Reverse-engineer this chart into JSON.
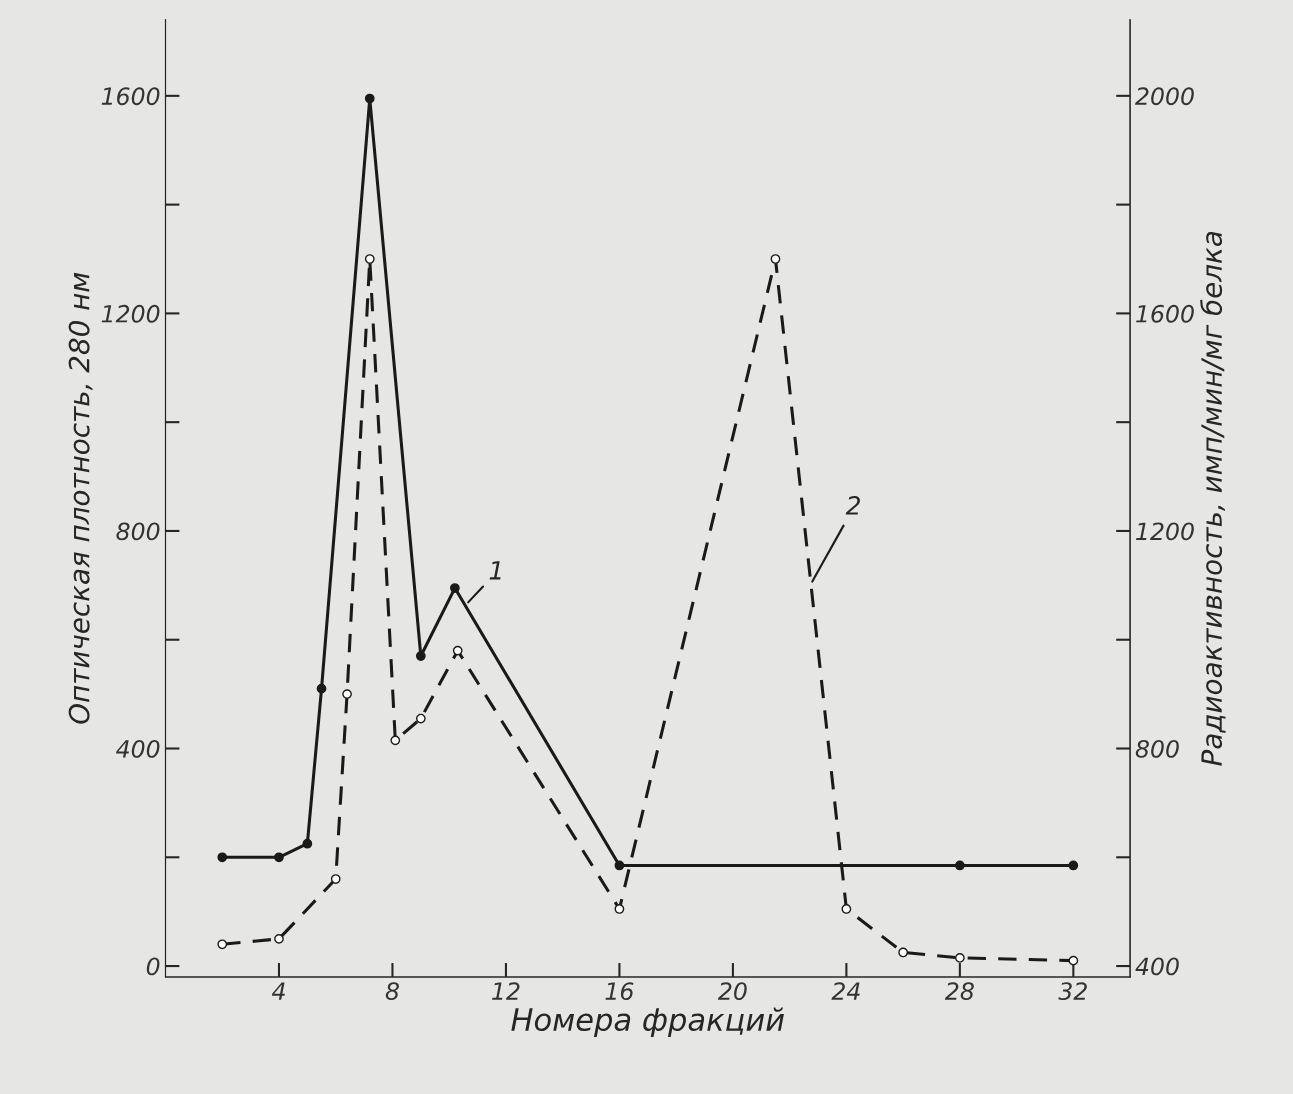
{
  "chart_data": {
    "type": "line",
    "xlabel": "Номера фракций",
    "ylabel": "Оптическая плотность, 280 нм",
    "y2label": "Радиоактивность, имп/мин/мг белка",
    "xlim": [
      0,
      34
    ],
    "xticks": [
      4,
      8,
      12,
      16,
      20,
      24,
      28,
      32
    ],
    "ylim": [
      -20,
      1740
    ],
    "yticks": [
      0,
      {
        "value": 200,
        "label": null
      },
      400,
      {
        "value": 600,
        "label": null
      },
      800,
      {
        "value": 1000,
        "label": null
      },
      1200,
      {
        "value": 1400,
        "label": null
      },
      1600
    ],
    "y2lim": [
      380,
      2140
    ],
    "y2ticks": [
      400,
      {
        "value": 600,
        "label": null
      },
      800,
      {
        "value": 1000,
        "label": null
      },
      1200,
      {
        "value": 1400,
        "label": null
      },
      1600,
      {
        "value": 1800,
        "label": null
      },
      2000
    ],
    "grid": false,
    "legend": false,
    "marker": "circle",
    "series": [
      {
        "name": "1",
        "color": "#1a1a1a",
        "line_style": "solid",
        "x": [
          2,
          4,
          5,
          5.5,
          7.2,
          9,
          10.2,
          16,
          28,
          32
        ],
        "values": [
          200,
          200,
          225,
          510,
          1595,
          570,
          695,
          185,
          185,
          185
        ]
      },
      {
        "name": "2",
        "color": "#1a1a1a",
        "line_style": "dashed",
        "axis": "y2",
        "x": [
          2,
          4,
          6,
          6.4,
          7.2,
          8.1,
          9,
          10.3,
          16,
          21.5,
          24,
          26,
          28,
          32
        ],
        "values": [
          440,
          450,
          560,
          900,
          1700,
          815,
          855,
          980,
          505,
          1700,
          505,
          425,
          415,
          410
        ]
      }
    ]
  }
}
